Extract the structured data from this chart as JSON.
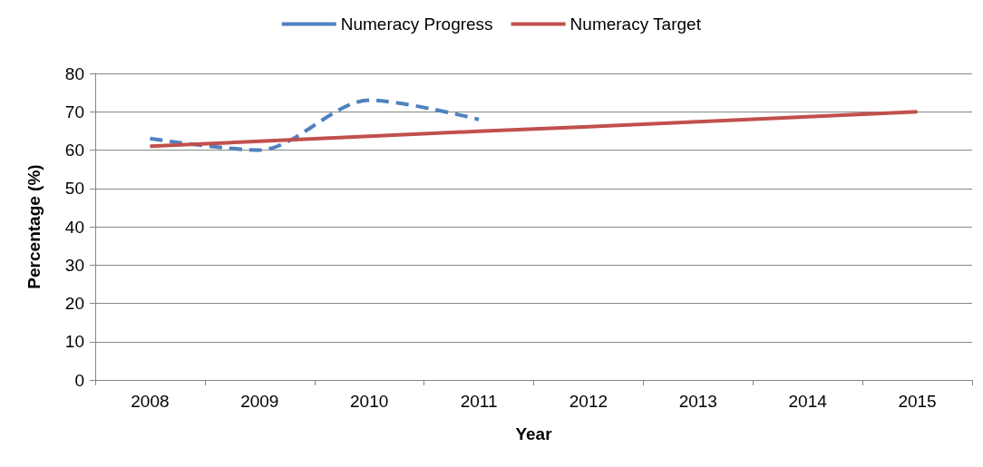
{
  "chart_data": {
    "type": "line",
    "xlabel": "Year",
    "ylabel": "Percentage (%)",
    "categories": [
      "2008",
      "2009",
      "2010",
      "2011",
      "2012",
      "2013",
      "2014",
      "2015"
    ],
    "series": [
      {
        "name": "Numeracy Progress",
        "color": "#4f81bd",
        "line_style": "dashed",
        "values": [
          63,
          60,
          73,
          68,
          null,
          null,
          null,
          null
        ]
      },
      {
        "name": "Numeracy Target",
        "color": "#c0504d",
        "line_style": "solid",
        "values": [
          61,
          62.3,
          63.6,
          64.9,
          66.1,
          67.4,
          68.7,
          70
        ]
      }
    ],
    "ylim": [
      0,
      80
    ],
    "yticks": [
      0,
      10,
      20,
      30,
      40,
      50,
      60,
      70,
      80
    ],
    "grid": "y",
    "legend": "top",
    "marker": "none"
  }
}
